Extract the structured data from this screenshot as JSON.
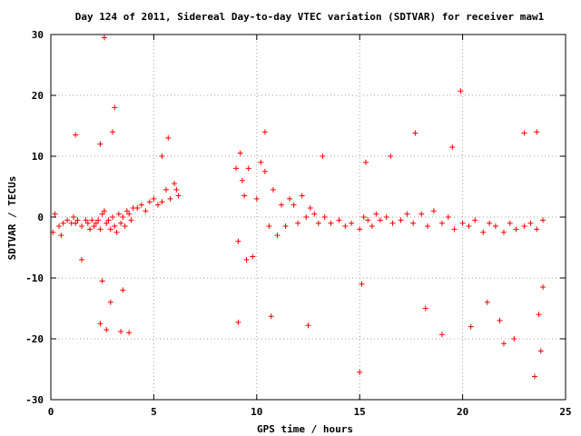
{
  "chart_data": {
    "type": "scatter",
    "title": "Day 124 of 2011, Sidereal Day-to-day VTEC variation (SDTVAR) for receiver maw1",
    "xlabel": "GPS time / hours",
    "ylabel": "SDTVAR / TECUs",
    "xlim": [
      0,
      25
    ],
    "ylim": [
      -30,
      30
    ],
    "xticks": [
      0,
      5,
      10,
      15,
      20,
      25
    ],
    "yticks": [
      -30,
      -20,
      -10,
      0,
      10,
      20,
      30
    ],
    "xtick_labels": [
      "0",
      "5",
      "10",
      "15",
      "20",
      "25"
    ],
    "ytick_labels": [
      "-30",
      "-20",
      "-10",
      "0",
      "10",
      "20",
      "30"
    ],
    "grid": true,
    "legend": "none",
    "marker": "+",
    "color": "#ff0000",
    "gaps": [
      [
        6.3,
        9.0
      ]
    ],
    "series": [
      {
        "x": [
          0.1,
          0.2,
          0.4,
          0.5,
          0.6,
          0.8,
          1.0,
          1.1,
          1.2,
          1.3,
          1.5,
          1.7,
          1.8,
          1.9,
          2.0,
          2.1,
          2.2,
          2.3,
          2.4,
          2.5,
          2.6,
          2.7,
          2.8,
          2.9,
          3.0,
          3.1,
          3.2,
          3.3,
          3.4,
          3.5,
          3.6,
          3.7,
          3.8,
          3.9,
          4.0,
          4.2,
          4.4,
          4.6,
          4.8,
          5.0,
          5.2,
          5.4,
          5.6,
          5.8,
          6.0,
          6.1,
          6.2,
          9.0,
          9.1,
          9.2,
          9.3,
          9.4,
          9.5,
          9.6,
          9.8,
          10.0,
          10.2,
          10.4,
          10.6,
          10.8,
          11.0,
          11.2,
          11.4,
          11.6,
          11.8,
          12.0,
          12.2,
          12.4,
          12.6,
          12.8,
          13.0,
          13.3,
          13.6,
          14.0,
          14.3,
          14.6,
          15.0,
          15.2,
          15.4,
          15.6,
          15.8,
          16.0,
          16.3,
          16.6,
          17.0,
          17.3,
          17.6,
          18.0,
          18.3,
          18.6,
          19.0,
          19.3,
          19.6,
          20.0,
          20.3,
          20.6,
          21.0,
          21.3,
          21.6,
          22.0,
          22.3,
          22.6,
          23.0,
          23.3,
          23.6,
          23.9,
          2.6,
          2.7,
          3.1,
          3.0,
          1.2,
          2.5,
          2.4,
          3.4,
          2.9,
          3.8,
          3.5,
          2.4,
          1.5,
          5.4,
          5.7,
          9.1,
          10.4,
          10.7,
          12.5,
          13.2,
          15.0,
          15.1,
          15.3,
          16.5,
          17.7,
          18.2,
          19.0,
          19.5,
          19.9,
          20.4,
          21.2,
          22.0,
          23.0,
          23.5,
          23.6,
          23.7,
          23.8,
          23.9,
          22.5,
          21.8
        ],
        "y": [
          -2.5,
          0.5,
          -1.5,
          -3.0,
          -1.0,
          -0.5,
          -1.0,
          0.0,
          -1.0,
          -0.5,
          -1.5,
          -0.5,
          -1.0,
          -2.0,
          -0.5,
          -1.5,
          -1.0,
          -0.5,
          -2.0,
          0.5,
          1.0,
          -1.0,
          -0.5,
          -2.0,
          0.0,
          -1.5,
          -2.5,
          0.5,
          -1.0,
          0.0,
          -1.5,
          1.0,
          0.5,
          -0.5,
          1.5,
          1.5,
          2.0,
          1.0,
          2.5,
          3.0,
          2.0,
          2.5,
          4.5,
          3.0,
          5.5,
          4.5,
          3.5,
          8.0,
          -4.0,
          10.5,
          6.0,
          3.5,
          -7.0,
          8.0,
          -6.5,
          3.0,
          9.0,
          7.5,
          -1.5,
          4.5,
          -3.0,
          2.0,
          -1.5,
          3.0,
          2.0,
          -1.0,
          3.5,
          0.0,
          1.5,
          0.5,
          -1.0,
          0.0,
          -1.0,
          -0.5,
          -1.5,
          -1.0,
          -2.0,
          0.0,
          -0.5,
          -1.5,
          0.5,
          -0.5,
          0.0,
          -1.0,
          -0.5,
          0.5,
          -1.0,
          0.5,
          -1.5,
          1.0,
          -1.0,
          0.0,
          -2.0,
          -1.0,
          -1.5,
          -0.5,
          -2.5,
          -1.0,
          -1.5,
          -2.5,
          -1.0,
          -2.0,
          -1.5,
          -1.0,
          -2.0,
          -0.5,
          29.5,
          -18.5,
          18.0,
          14.0,
          13.5,
          -10.5,
          -17.5,
          -18.8,
          -14.0,
          -19.0,
          -12.0,
          12.0,
          -7.0,
          10.0,
          13.0,
          -17.3,
          14.0,
          -16.3,
          -17.8,
          10.0,
          -25.5,
          -11.0,
          9.0,
          10.0,
          13.8,
          -15.0,
          -19.3,
          11.5,
          20.7,
          -18.0,
          -14.0,
          -20.8,
          13.8,
          -26.2,
          14.0,
          -16.0,
          -22.0,
          -11.5,
          -20.0,
          -17.0
        ]
      }
    ]
  }
}
